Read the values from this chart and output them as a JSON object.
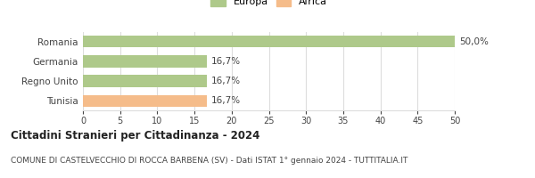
{
  "categories": [
    "Tunisia",
    "Regno Unito",
    "Germania",
    "Romania"
  ],
  "values": [
    16.7,
    16.7,
    16.7,
    50.0
  ],
  "colors": [
    "#f5bc8a",
    "#aec98a",
    "#aec98a",
    "#aec98a"
  ],
  "labels": [
    "16,7%",
    "16,7%",
    "16,7%",
    "50,0%"
  ],
  "xlim": [
    0,
    50
  ],
  "xticks": [
    0,
    5,
    10,
    15,
    20,
    25,
    30,
    35,
    40,
    45,
    50
  ],
  "legend": [
    {
      "label": "Europa",
      "color": "#aec98a"
    },
    {
      "label": "Africa",
      "color": "#f5bc8a"
    }
  ],
  "title": "Cittadini Stranieri per Cittadinanza - 2024",
  "subtitle": "COMUNE DI CASTELVECCHIO DI ROCCA BARBENA (SV) - Dati ISTAT 1° gennaio 2024 - TUTTITALIA.IT",
  "title_fontsize": 8.5,
  "subtitle_fontsize": 6.5,
  "label_fontsize": 7.5,
  "tick_fontsize": 7,
  "legend_fontsize": 8,
  "bar_height": 0.6,
  "background_color": "#ffffff",
  "grid_color": "#dddddd",
  "text_color": "#444444"
}
